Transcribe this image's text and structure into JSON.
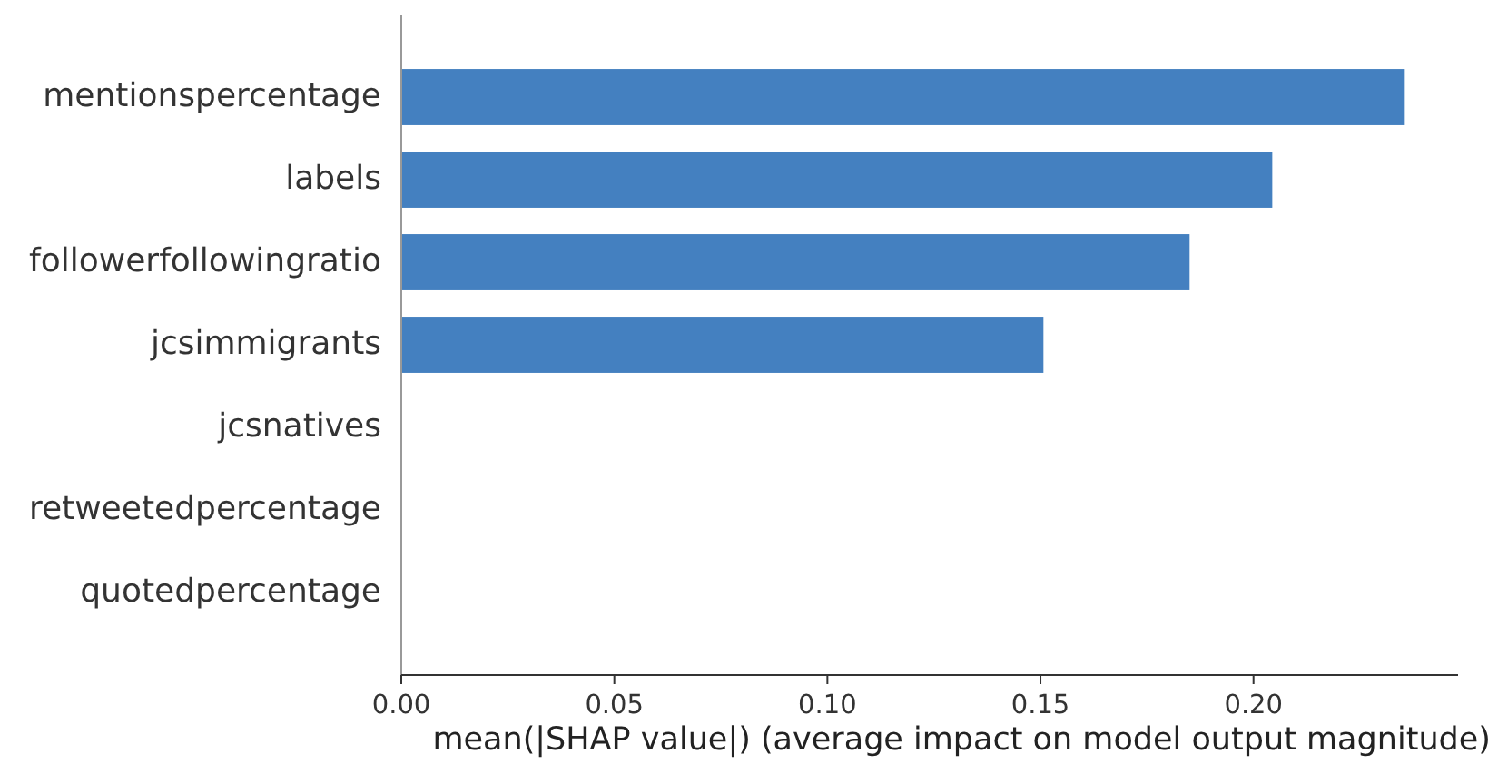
{
  "chart_data": {
    "type": "bar",
    "orientation": "horizontal",
    "xlabel": "mean(|SHAP value|) (average impact on model output magnitude)",
    "categories": [
      "mentionspercentage",
      "labels",
      "followerfollowingratio",
      "jcsimmigrants",
      "jcsnatives",
      "retweetedpercentage",
      "quotedpercentage"
    ],
    "values": [
      0.2355,
      0.2044,
      0.185,
      0.1507,
      0,
      0,
      0
    ],
    "color": "#4480c0",
    "xlim": [
      0,
      0.248
    ],
    "xticks": [
      {
        "value": 0,
        "label": "0.00"
      },
      {
        "value": 0.05,
        "label": "0.05"
      },
      {
        "value": 0.1,
        "label": "0.10"
      },
      {
        "value": 0.15,
        "label": "0.15"
      },
      {
        "value": 0.2,
        "label": "0.20"
      }
    ],
    "grid": false
  }
}
